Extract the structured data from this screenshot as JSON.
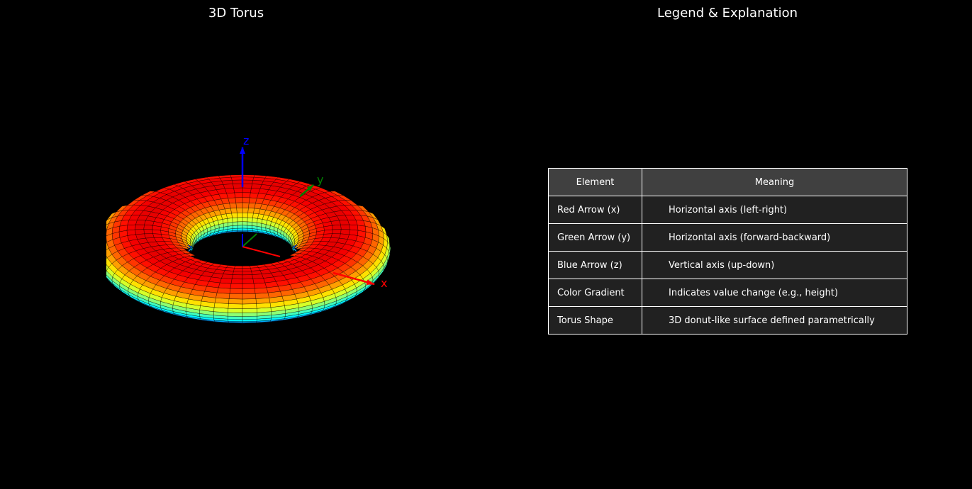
{
  "left_panel": {
    "title": "3D Torus",
    "axes": {
      "x": {
        "label": "x",
        "color": "#ff0000"
      },
      "y": {
        "label": "y",
        "color": "#008000"
      },
      "z": {
        "label": "z",
        "color": "#0000ff"
      }
    },
    "colormap": "jet"
  },
  "right_panel": {
    "title": "Legend & Explanation",
    "table": {
      "headers": [
        "Element",
        "Meaning"
      ],
      "rows": [
        [
          "Red Arrow (x)",
          "Horizontal axis (left-right)"
        ],
        [
          "Green Arrow (y)",
          "Horizontal axis (forward-backward)"
        ],
        [
          "Blue Arrow (z)",
          "Vertical axis (up-down)"
        ],
        [
          "Color Gradient",
          "Indicates value change (e.g., height)"
        ],
        [
          "Torus Shape",
          "3D donut-like surface defined parametrically"
        ]
      ],
      "header_bg": "#404040",
      "cell_bg": "#212121"
    }
  }
}
